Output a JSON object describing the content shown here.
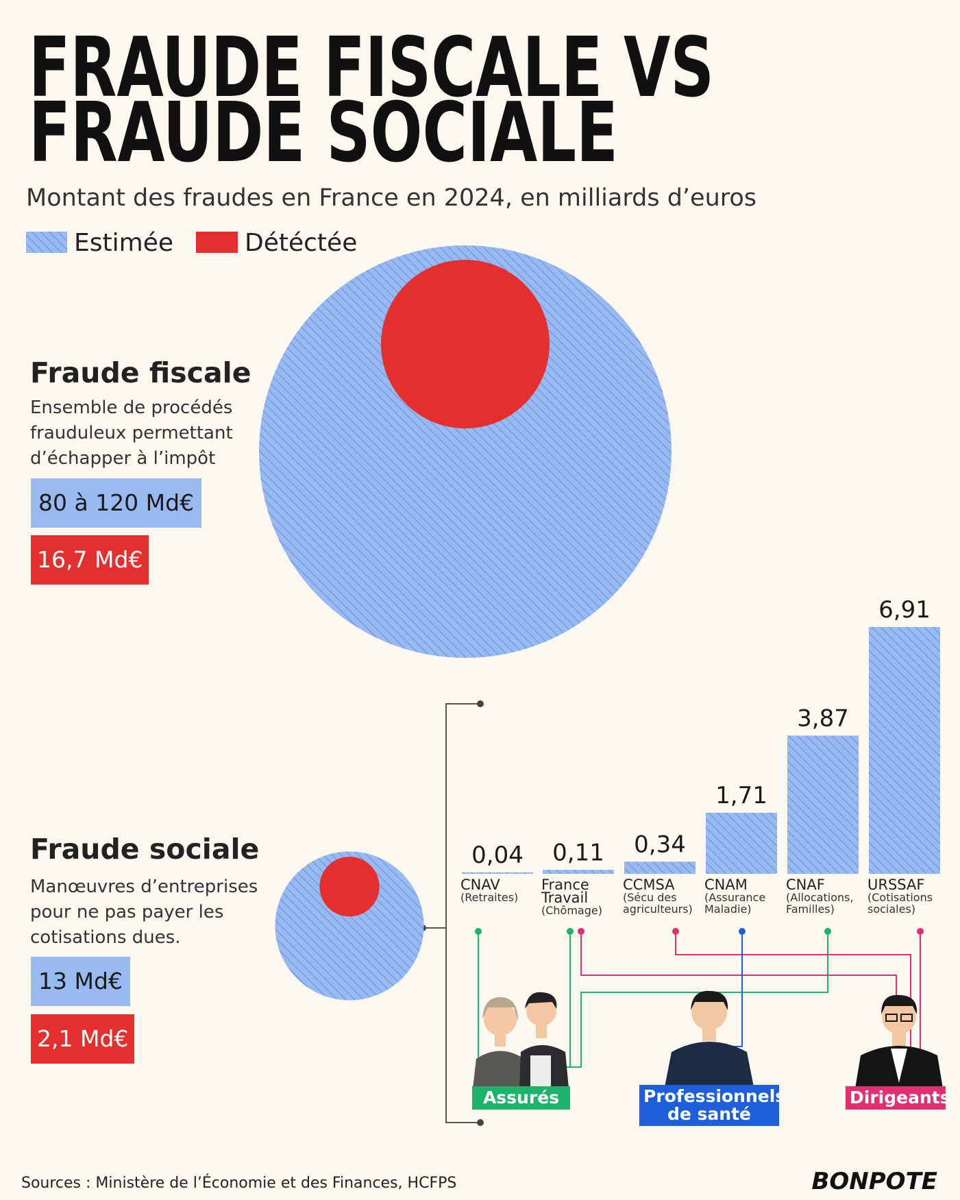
{
  "title": [
    "FRAUDE FISCALE VS",
    "FRAUDE SOCIALE"
  ],
  "subtitle": "Montant des fraudes en France en 2024, en milliards d’euros",
  "legend": [
    {
      "name": "Estimée",
      "color": "#98baf0"
    },
    {
      "name": "Détéctée",
      "color": "#e3302f"
    }
  ],
  "chart_data": [
    {
      "type": "circles",
      "title": "Fraude fiscale",
      "description": [
        "Ensemble de procédés",
        "frauduleux permettant",
        "d’échapper à l’impôt"
      ],
      "estimated": {
        "low": 80,
        "high": 120,
        "label": "80 à 120 Md€"
      },
      "detected": {
        "value": 16.7,
        "label": "16,7 Md€"
      }
    },
    {
      "type": "circles",
      "title": "Fraude sociale",
      "description": [
        "Manœuvres d’entreprises",
        "pour ne pas payer les",
        "cotisations dues."
      ],
      "estimated": {
        "value": 13,
        "label": "13 Md€"
      },
      "detected": {
        "value": 2.1,
        "label": "2,1 Md€"
      }
    },
    {
      "type": "bar",
      "categories": [
        "CNAV",
        "France Travail",
        "CCMSA",
        "CNAM",
        "CNAF",
        "URSSAF"
      ],
      "sublabels": [
        "(Retraites)",
        "(Chômage)",
        "(Sécu des agriculteurs)",
        "(Assurance Maladie)",
        "(Allocations, Familles)",
        "(Cotisations sociales)"
      ],
      "values": [
        0.04,
        0.11,
        0.34,
        1.71,
        3.87,
        6.91
      ],
      "value_labels": [
        "0,04",
        "0,11",
        "0,34",
        "1,71",
        "3,87",
        "6,91"
      ]
    }
  ],
  "groups": [
    {
      "name": "Assurés",
      "color": "#1db36b"
    },
    {
      "name": "Professionnels de santé",
      "color": "#1c5fd8"
    },
    {
      "name": "Dirigeants",
      "color": "#e0306f"
    }
  ],
  "sources": "Sources : Ministère de l’Économie et des Finances, HCFPS",
  "logo": "BONPOTE"
}
